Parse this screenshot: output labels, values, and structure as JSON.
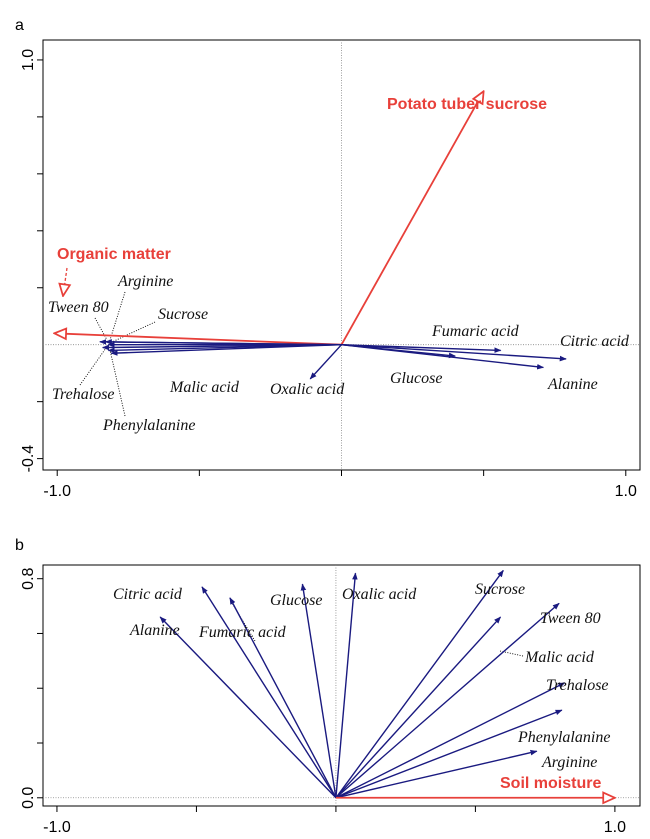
{
  "chart_data": [
    {
      "type": "biplot",
      "panel": "a",
      "xlim": [
        -1.05,
        1.05
      ],
      "ylim": [
        -0.44,
        1.07
      ],
      "xticks": [
        {
          "value": -1,
          "label": "-1.0"
        },
        {
          "value": 1,
          "label": "1.0"
        }
      ],
      "xminorticks": [
        -0.5,
        0,
        0.5
      ],
      "yticks": [
        {
          "value": -0.4,
          "label": "-0.4"
        },
        {
          "value": 1,
          "label": "1.0"
        }
      ],
      "yminorticks": [
        -0.2,
        0.2,
        0.4,
        0.6,
        0.8
      ],
      "vectors": [
        {
          "name": "Potato tuber sucrose",
          "x": 0.5,
          "y": 0.89,
          "color": "#e8403a",
          "kind": "environment"
        },
        {
          "name": "Organic matter",
          "x": -1.01,
          "y": 0.04,
          "color": "#e8403a",
          "kind": "environment"
        },
        {
          "name": "Tween 80",
          "x": -0.85,
          "y": 0.01,
          "color": "#1a1a80",
          "kind": "substrate"
        },
        {
          "name": "Arginine",
          "x": -0.83,
          "y": 0.01,
          "color": "#1a1a80",
          "kind": "substrate"
        },
        {
          "name": "Sucrose",
          "x": -0.82,
          "y": 0.0,
          "color": "#1a1a80",
          "kind": "substrate"
        },
        {
          "name": "Trehalose",
          "x": -0.84,
          "y": -0.01,
          "color": "#1a1a80",
          "kind": "substrate"
        },
        {
          "name": "Phenylalanine",
          "x": -0.82,
          "y": -0.02,
          "color": "#1a1a80",
          "kind": "substrate"
        },
        {
          "name": "Malic acid",
          "x": -0.81,
          "y": -0.03,
          "color": "#1a1a80",
          "kind": "substrate"
        },
        {
          "name": "Oxalic acid",
          "x": -0.11,
          "y": -0.12,
          "color": "#1a1a80",
          "kind": "substrate"
        },
        {
          "name": "Glucose",
          "x": 0.4,
          "y": -0.04,
          "color": "#1a1a80",
          "kind": "substrate"
        },
        {
          "name": "Fumaric acid",
          "x": 0.56,
          "y": -0.02,
          "color": "#1a1a80",
          "kind": "substrate"
        },
        {
          "name": "Citric acid",
          "x": 0.79,
          "y": -0.05,
          "color": "#1a1a80",
          "kind": "substrate"
        },
        {
          "name": "Alanine",
          "x": 0.71,
          "y": -0.08,
          "color": "#1a1a80",
          "kind": "substrate"
        }
      ]
    },
    {
      "type": "biplot",
      "panel": "b",
      "xlim": [
        -1.05,
        1.09
      ],
      "ylim": [
        -0.03,
        0.85
      ],
      "xticks": [
        {
          "value": -1,
          "label": "-1.0"
        },
        {
          "value": 1,
          "label": "1.0"
        }
      ],
      "xminorticks": [
        -0.5,
        0,
        0.5
      ],
      "yticks": [
        {
          "value": 0,
          "label": "0.0"
        },
        {
          "value": 0.8,
          "label": "0.8"
        }
      ],
      "yminorticks": [
        0.2,
        0.4,
        0.6
      ],
      "vectors": [
        {
          "name": "Alanine",
          "x": -0.63,
          "y": 0.66,
          "color": "#1a1a80",
          "kind": "substrate"
        },
        {
          "name": "Citric acid",
          "x": -0.48,
          "y": 0.77,
          "color": "#1a1a80",
          "kind": "substrate"
        },
        {
          "name": "Fumaric acid",
          "x": -0.38,
          "y": 0.73,
          "color": "#1a1a80",
          "kind": "substrate"
        },
        {
          "name": "Glucose",
          "x": -0.12,
          "y": 0.78,
          "color": "#1a1a80",
          "kind": "substrate"
        },
        {
          "name": "Oxalic acid",
          "x": 0.07,
          "y": 0.82,
          "color": "#1a1a80",
          "kind": "substrate"
        },
        {
          "name": "Sucrose",
          "x": 0.6,
          "y": 0.83,
          "color": "#1a1a80",
          "kind": "substrate"
        },
        {
          "name": "Tween 80",
          "x": 0.8,
          "y": 0.71,
          "color": "#1a1a80",
          "kind": "substrate"
        },
        {
          "name": "Malic acid",
          "x": 0.59,
          "y": 0.66,
          "color": "#1a1a80",
          "kind": "substrate"
        },
        {
          "name": "Trehalose",
          "x": 0.82,
          "y": 0.42,
          "color": "#1a1a80",
          "kind": "substrate"
        },
        {
          "name": "Phenylalanine",
          "x": 0.81,
          "y": 0.32,
          "color": "#1a1a80",
          "kind": "substrate"
        },
        {
          "name": "Arginine",
          "x": 0.72,
          "y": 0.17,
          "color": "#1a1a80",
          "kind": "substrate"
        },
        {
          "name": "Soil moisture",
          "x": 1.0,
          "y": 0.0,
          "color": "#e8403a",
          "kind": "environment"
        }
      ]
    }
  ]
}
